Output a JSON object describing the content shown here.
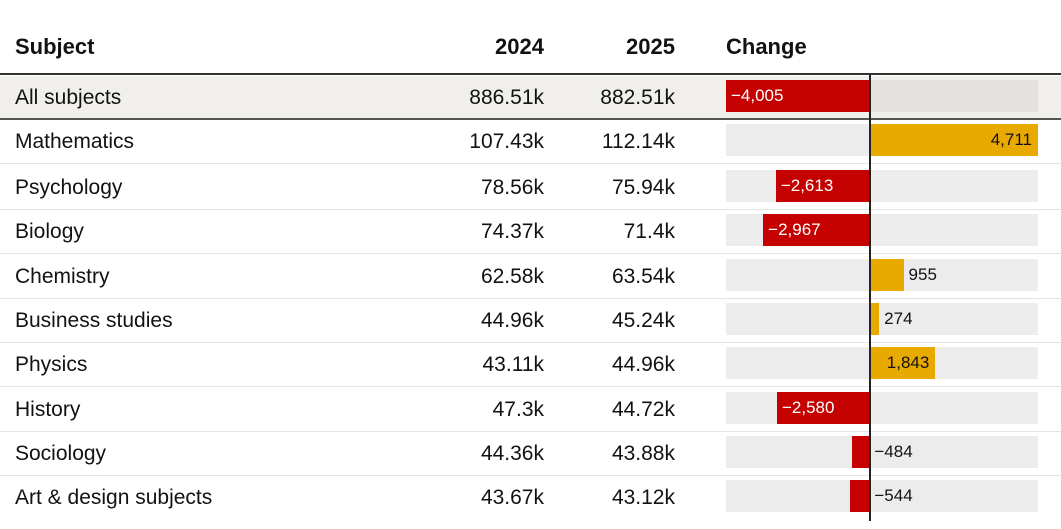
{
  "colors": {
    "negative": "#c40000",
    "positive": "#e8a900",
    "track": "#ececec",
    "highlight": "#f1efec"
  },
  "header": {
    "subject": "Subject",
    "y2024": "2024",
    "y2025": "2025",
    "change": "Change"
  },
  "rows": [
    {
      "subject": "All subjects",
      "y2024": "886.51k",
      "y2025": "882.51k",
      "change": -4005,
      "change_label": "−4,005",
      "highlight": true
    },
    {
      "subject": "Mathematics",
      "y2024": "107.43k",
      "y2025": "112.14k",
      "change": 4711,
      "change_label": "4,711"
    },
    {
      "subject": "Psychology",
      "y2024": "78.56k",
      "y2025": "75.94k",
      "change": -2613,
      "change_label": "−2,613"
    },
    {
      "subject": "Biology",
      "y2024": "74.37k",
      "y2025": "71.4k",
      "change": -2967,
      "change_label": "−2,967"
    },
    {
      "subject": "Chemistry",
      "y2024": "62.58k",
      "y2025": "63.54k",
      "change": 955,
      "change_label": "955"
    },
    {
      "subject": "Business studies",
      "y2024": "44.96k",
      "y2025": "45.24k",
      "change": 274,
      "change_label": "274"
    },
    {
      "subject": "Physics",
      "y2024": "43.11k",
      "y2025": "44.96k",
      "change": 1843,
      "change_label": "1,843"
    },
    {
      "subject": "History",
      "y2024": "47.3k",
      "y2025": "44.72k",
      "change": -2580,
      "change_label": "−2,580"
    },
    {
      "subject": "Sociology",
      "y2024": "44.36k",
      "y2025": "43.88k",
      "change": -484,
      "change_label": "−484"
    },
    {
      "subject": "Art & design subjects",
      "y2024": "43.67k",
      "y2025": "43.12k",
      "change": -544,
      "change_label": "−544"
    }
  ],
  "chart_data": {
    "type": "table",
    "columns": [
      "Subject",
      "2024",
      "2025",
      "Change"
    ],
    "categories": [
      "All subjects",
      "Mathematics",
      "Psychology",
      "Biology",
      "Chemistry",
      "Business studies",
      "Physics",
      "History",
      "Sociology",
      "Art & design subjects"
    ],
    "series": [
      {
        "name": "2024",
        "values": [
          886510,
          107430,
          78560,
          74370,
          62580,
          44960,
          43110,
          47300,
          44360,
          43670
        ]
      },
      {
        "name": "2025",
        "values": [
          882510,
          112140,
          75940,
          71400,
          63540,
          45240,
          44960,
          44720,
          43880,
          43120
        ]
      },
      {
        "name": "Change",
        "values": [
          -4005,
          4711,
          -2613,
          -2967,
          955,
          274,
          1843,
          -2580,
          -484,
          -544
        ]
      }
    ],
    "change_range": [
      -4005,
      4711
    ]
  }
}
